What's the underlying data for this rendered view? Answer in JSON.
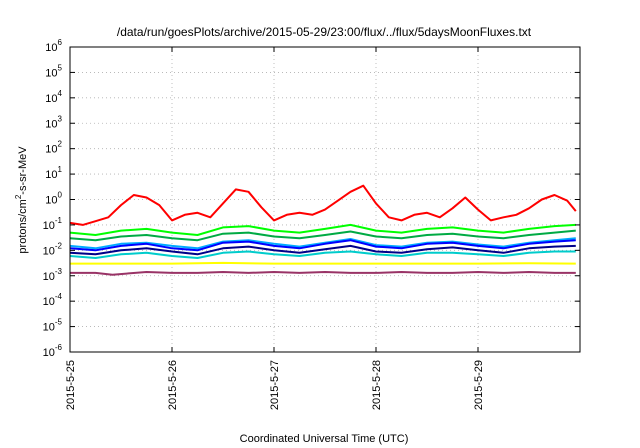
{
  "chart_data": {
    "type": "line",
    "title": "/data/run/goesPlots/archive/2015-05-29/23:00/flux/../flux/5daysMoonFluxes.txt",
    "xlabel": "Coordinated Universal Time (UTC)",
    "ylabel": {
      "prefix": "protons/cm",
      "sup": "2",
      "suffix": "-s-sr-MeV"
    },
    "x_axis": {
      "type": "time",
      "range": [
        "2015-05-25",
        "2015-05-30"
      ],
      "ticks": [
        {
          "date": "2015-05-25",
          "label": "2015-5-25"
        },
        {
          "date": "2015-05-26",
          "label": "2015-5-26"
        },
        {
          "date": "2015-05-27",
          "label": "2015-5-27"
        },
        {
          "date": "2015-05-28",
          "label": "2015-5-28"
        },
        {
          "date": "2015-05-29",
          "label": "2015-5-29"
        }
      ]
    },
    "y_axis": {
      "scale": "log",
      "range": [
        1e-06,
        1000000.0
      ],
      "ticks": [
        {
          "value": 1e-06,
          "base": "10",
          "exp": "-6"
        },
        {
          "value": 1e-05,
          "base": "10",
          "exp": "-5"
        },
        {
          "value": 0.0001,
          "base": "10",
          "exp": "-4"
        },
        {
          "value": 0.001,
          "base": "10",
          "exp": "-3"
        },
        {
          "value": 0.01,
          "base": "10",
          "exp": "-2"
        },
        {
          "value": 0.1,
          "base": "10",
          "exp": "-1"
        },
        {
          "value": 1,
          "base": "10",
          "exp": "0"
        },
        {
          "value": 10.0,
          "base": "10",
          "exp": "1"
        },
        {
          "value": 100.0,
          "base": "10",
          "exp": "2"
        },
        {
          "value": 1000.0,
          "base": "10",
          "exp": "3"
        },
        {
          "value": 10000.0,
          "base": "10",
          "exp": "4"
        },
        {
          "value": 100000.0,
          "base": "10",
          "exp": "5"
        },
        {
          "value": 1000000.0,
          "base": "10",
          "exp": "6"
        }
      ]
    },
    "grid": true,
    "legend": "none",
    "series": [
      {
        "color": "#ff0000",
        "x": [
          "2015-05-25 00:00",
          "2015-05-25 03:00",
          "2015-05-25 06:00",
          "2015-05-25 09:00",
          "2015-05-25 12:00",
          "2015-05-25 15:00",
          "2015-05-25 18:00",
          "2015-05-25 21:00",
          "2015-05-26 00:00",
          "2015-05-26 03:00",
          "2015-05-26 06:00",
          "2015-05-26 09:00",
          "2015-05-26 12:00",
          "2015-05-26 15:00",
          "2015-05-26 18:00",
          "2015-05-26 21:00",
          "2015-05-27 00:00",
          "2015-05-27 03:00",
          "2015-05-27 06:00",
          "2015-05-27 09:00",
          "2015-05-27 12:00",
          "2015-05-27 15:00",
          "2015-05-27 18:00",
          "2015-05-27 21:00",
          "2015-05-28 00:00",
          "2015-05-28 03:00",
          "2015-05-28 06:00",
          "2015-05-28 09:00",
          "2015-05-28 12:00",
          "2015-05-28 15:00",
          "2015-05-28 18:00",
          "2015-05-28 21:00",
          "2015-05-29 00:00",
          "2015-05-29 03:00",
          "2015-05-29 06:00",
          "2015-05-29 09:00",
          "2015-05-29 12:00",
          "2015-05-29 15:00",
          "2015-05-29 18:00",
          "2015-05-29 21:00",
          "2015-05-29 23:00"
        ],
        "y": [
          0.12,
          0.1,
          0.14,
          0.2,
          0.6,
          1.5,
          1.2,
          0.6,
          0.15,
          0.25,
          0.3,
          0.2,
          0.7,
          2.5,
          2.0,
          0.5,
          0.15,
          0.25,
          0.3,
          0.25,
          0.4,
          0.9,
          2.0,
          3.5,
          0.7,
          0.2,
          0.15,
          0.25,
          0.3,
          0.2,
          0.45,
          1.2,
          0.4,
          0.15,
          0.2,
          0.25,
          0.45,
          1.0,
          1.5,
          0.9,
          0.35
        ]
      },
      {
        "color": "#00ff00",
        "x": [
          "2015-05-25 00:00",
          "2015-05-25 06:00",
          "2015-05-25 12:00",
          "2015-05-25 18:00",
          "2015-05-26 00:00",
          "2015-05-26 06:00",
          "2015-05-26 12:00",
          "2015-05-26 18:00",
          "2015-05-27 00:00",
          "2015-05-27 06:00",
          "2015-05-27 12:00",
          "2015-05-27 18:00",
          "2015-05-28 00:00",
          "2015-05-28 06:00",
          "2015-05-28 12:00",
          "2015-05-28 18:00",
          "2015-05-29 00:00",
          "2015-05-29 06:00",
          "2015-05-29 12:00",
          "2015-05-29 18:00",
          "2015-05-29 23:00"
        ],
        "y": [
          0.05,
          0.04,
          0.06,
          0.07,
          0.05,
          0.04,
          0.08,
          0.09,
          0.06,
          0.05,
          0.07,
          0.1,
          0.06,
          0.05,
          0.07,
          0.08,
          0.06,
          0.05,
          0.07,
          0.09,
          0.1
        ]
      },
      {
        "color": "#00aa44",
        "x": [
          "2015-05-25 00:00",
          "2015-05-25 06:00",
          "2015-05-25 12:00",
          "2015-05-25 18:00",
          "2015-05-26 00:00",
          "2015-05-26 06:00",
          "2015-05-26 12:00",
          "2015-05-26 18:00",
          "2015-05-27 00:00",
          "2015-05-27 06:00",
          "2015-05-27 12:00",
          "2015-05-27 18:00",
          "2015-05-28 00:00",
          "2015-05-28 06:00",
          "2015-05-28 12:00",
          "2015-05-28 18:00",
          "2015-05-29 00:00",
          "2015-05-29 06:00",
          "2015-05-29 12:00",
          "2015-05-29 18:00",
          "2015-05-29 23:00"
        ],
        "y": [
          0.03,
          0.025,
          0.035,
          0.04,
          0.03,
          0.025,
          0.045,
          0.05,
          0.035,
          0.03,
          0.04,
          0.055,
          0.035,
          0.03,
          0.04,
          0.045,
          0.035,
          0.03,
          0.04,
          0.05,
          0.06
        ]
      },
      {
        "color": "#00aaff",
        "x": [
          "2015-05-25 00:00",
          "2015-05-25 06:00",
          "2015-05-25 12:00",
          "2015-05-25 18:00",
          "2015-05-26 00:00",
          "2015-05-26 06:00",
          "2015-05-26 12:00",
          "2015-05-26 18:00",
          "2015-05-27 00:00",
          "2015-05-27 06:00",
          "2015-05-27 12:00",
          "2015-05-27 18:00",
          "2015-05-28 00:00",
          "2015-05-28 06:00",
          "2015-05-28 12:00",
          "2015-05-28 18:00",
          "2015-05-29 00:00",
          "2015-05-29 06:00",
          "2015-05-29 12:00",
          "2015-05-29 18:00",
          "2015-05-29 23:00"
        ],
        "y": [
          0.015,
          0.012,
          0.018,
          0.02,
          0.015,
          0.012,
          0.022,
          0.025,
          0.018,
          0.014,
          0.02,
          0.028,
          0.016,
          0.014,
          0.02,
          0.022,
          0.017,
          0.014,
          0.02,
          0.025,
          0.03
        ]
      },
      {
        "color": "#0000ff",
        "x": [
          "2015-05-25 00:00",
          "2015-05-25 06:00",
          "2015-05-25 12:00",
          "2015-05-25 18:00",
          "2015-05-26 00:00",
          "2015-05-26 06:00",
          "2015-05-26 12:00",
          "2015-05-26 18:00",
          "2015-05-27 00:00",
          "2015-05-27 06:00",
          "2015-05-27 12:00",
          "2015-05-27 18:00",
          "2015-05-28 00:00",
          "2015-05-28 06:00",
          "2015-05-28 12:00",
          "2015-05-28 18:00",
          "2015-05-29 00:00",
          "2015-05-29 06:00",
          "2015-05-29 12:00",
          "2015-05-29 18:00",
          "2015-05-29 23:00"
        ],
        "y": [
          0.012,
          0.01,
          0.015,
          0.018,
          0.012,
          0.01,
          0.02,
          0.022,
          0.015,
          0.012,
          0.018,
          0.025,
          0.014,
          0.012,
          0.018,
          0.02,
          0.015,
          0.012,
          0.018,
          0.022,
          0.025
        ]
      },
      {
        "color": "#000088",
        "x": [
          "2015-05-25 00:00",
          "2015-05-25 06:00",
          "2015-05-25 12:00",
          "2015-05-25 18:00",
          "2015-05-26 00:00",
          "2015-05-26 06:00",
          "2015-05-26 12:00",
          "2015-05-26 18:00",
          "2015-05-27 00:00",
          "2015-05-27 06:00",
          "2015-05-27 12:00",
          "2015-05-27 18:00",
          "2015-05-28 00:00",
          "2015-05-28 06:00",
          "2015-05-28 12:00",
          "2015-05-28 18:00",
          "2015-05-29 00:00",
          "2015-05-29 06:00",
          "2015-05-29 12:00",
          "2015-05-29 18:00",
          "2015-05-29 23:00"
        ],
        "y": [
          0.008,
          0.007,
          0.01,
          0.012,
          0.009,
          0.007,
          0.012,
          0.014,
          0.01,
          0.008,
          0.011,
          0.015,
          0.009,
          0.008,
          0.011,
          0.013,
          0.01,
          0.008,
          0.012,
          0.014,
          0.015
        ]
      },
      {
        "color": "#00cccc",
        "x": [
          "2015-05-25 00:00",
          "2015-05-25 06:00",
          "2015-05-25 12:00",
          "2015-05-25 18:00",
          "2015-05-26 00:00",
          "2015-05-26 06:00",
          "2015-05-26 12:00",
          "2015-05-26 18:00",
          "2015-05-27 00:00",
          "2015-05-27 06:00",
          "2015-05-27 12:00",
          "2015-05-27 18:00",
          "2015-05-28 00:00",
          "2015-05-28 06:00",
          "2015-05-28 12:00",
          "2015-05-28 18:00",
          "2015-05-29 00:00",
          "2015-05-29 06:00",
          "2015-05-29 12:00",
          "2015-05-29 18:00",
          "2015-05-29 23:00"
        ],
        "y": [
          0.006,
          0.005,
          0.007,
          0.008,
          0.006,
          0.005,
          0.008,
          0.009,
          0.007,
          0.006,
          0.008,
          0.009,
          0.007,
          0.006,
          0.008,
          0.008,
          0.007,
          0.006,
          0.008,
          0.009,
          0.009
        ]
      },
      {
        "color": "#ffff00",
        "x": [
          "2015-05-25 00:00",
          "2015-05-25 12:00",
          "2015-05-26 00:00",
          "2015-05-26 12:00",
          "2015-05-27 00:00",
          "2015-05-27 12:00",
          "2015-05-28 00:00",
          "2015-05-28 12:00",
          "2015-05-29 00:00",
          "2015-05-29 12:00",
          "2015-05-29 23:00"
        ],
        "y": [
          0.003,
          0.003,
          0.003,
          0.0032,
          0.003,
          0.003,
          0.003,
          0.003,
          0.003,
          0.0031,
          0.003
        ]
      },
      {
        "color": "#993366",
        "x": [
          "2015-05-25 00:00",
          "2015-05-25 06:00",
          "2015-05-25 10:00",
          "2015-05-25 18:00",
          "2015-05-26 00:00",
          "2015-05-26 06:00",
          "2015-05-26 12:00",
          "2015-05-26 18:00",
          "2015-05-27 00:00",
          "2015-05-27 06:00",
          "2015-05-27 12:00",
          "2015-05-27 18:00",
          "2015-05-28 00:00",
          "2015-05-28 06:00",
          "2015-05-28 12:00",
          "2015-05-28 18:00",
          "2015-05-29 00:00",
          "2015-05-29 06:00",
          "2015-05-29 12:00",
          "2015-05-29 18:00",
          "2015-05-29 23:00"
        ],
        "y": [
          0.0013,
          0.0013,
          0.0011,
          0.0014,
          0.0013,
          0.0013,
          0.0014,
          0.0013,
          0.0014,
          0.0013,
          0.0014,
          0.0013,
          0.0013,
          0.0014,
          0.0013,
          0.0013,
          0.0014,
          0.0013,
          0.0014,
          0.0013,
          0.0013
        ]
      }
    ]
  }
}
